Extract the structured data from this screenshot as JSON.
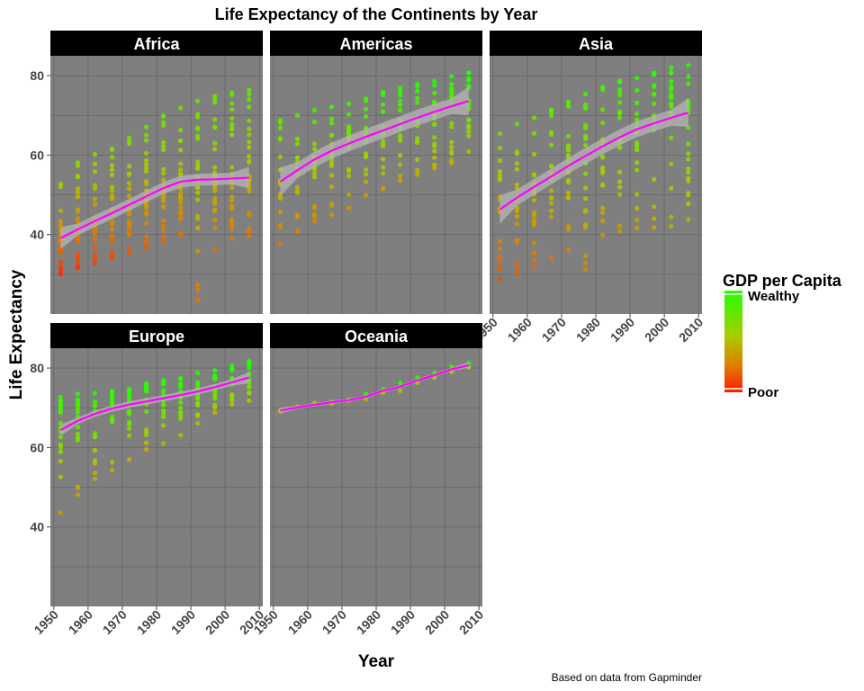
{
  "chart_data": {
    "type": "scatter",
    "title": "Life Expectancy of the Continents by Year",
    "xlabel": "Year",
    "ylabel": "Life Expectancy",
    "caption": "Based on data from Gapminder",
    "xlim": [
      1949,
      2011
    ],
    "ylim": [
      20,
      85
    ],
    "x_ticks": [
      1950,
      1960,
      1970,
      1980,
      1990,
      2000,
      2010
    ],
    "y_ticks": [
      40,
      60,
      80
    ],
    "grid": true,
    "years": [
      1952,
      1957,
      1962,
      1967,
      1972,
      1977,
      1982,
      1987,
      1992,
      1997,
      2002,
      2007
    ],
    "legend": {
      "title": "GDP per Capita",
      "position": "right",
      "high_label": "Wealthy",
      "low_label": "Poor",
      "high_color": "#22ff00",
      "low_color": "#ff1a00"
    },
    "colors": {
      "panel_background": "#7f7f7f",
      "strip_background": "#000000",
      "smooth_line": "#ff00ff",
      "confidence_band": "#b5b5b5"
    },
    "facets": [
      {
        "name": "Africa",
        "smooth": [
          39.1,
          41.3,
          43.4,
          45.4,
          47.5,
          49.6,
          51.7,
          53.3,
          53.8,
          53.9,
          54.1,
          54.3
        ],
        "range": [
          [
            30.0,
            52.7
          ],
          [
            31.6,
            58.1
          ],
          [
            32.8,
            60.2
          ],
          [
            34.1,
            61.6
          ],
          [
            35.4,
            64.3
          ],
          [
            36.8,
            67.1
          ],
          [
            38.4,
            69.9
          ],
          [
            39.9,
            71.9
          ],
          [
            23.6,
            73.6
          ],
          [
            36.1,
            74.8
          ],
          [
            39.2,
            75.7
          ],
          [
            39.6,
            76.4
          ]
        ],
        "smooth_band": 1.5
      },
      {
        "name": "Americas",
        "smooth": [
          53.3,
          56.2,
          58.9,
          61.1,
          62.9,
          64.6,
          66.2,
          67.8,
          69.4,
          70.9,
          72.3,
          73.6
        ],
        "range": [
          [
            37.6,
            68.8
          ],
          [
            40.7,
            70.0
          ],
          [
            43.4,
            71.3
          ],
          [
            45.0,
            72.1
          ],
          [
            46.7,
            72.9
          ],
          [
            49.9,
            74.2
          ],
          [
            51.5,
            75.8
          ],
          [
            53.6,
            76.9
          ],
          [
            55.1,
            77.9
          ],
          [
            56.7,
            78.6
          ],
          [
            58.1,
            79.8
          ],
          [
            60.9,
            80.7
          ]
        ],
        "smooth_band": 2.0
      },
      {
        "name": "Asia",
        "smooth": [
          46.3,
          49.3,
          52.0,
          54.6,
          57.3,
          59.8,
          62.2,
          64.5,
          66.5,
          68.0,
          69.4,
          70.7
        ],
        "range": [
          [
            28.8,
            65.4
          ],
          [
            30.3,
            67.8
          ],
          [
            32.0,
            69.4
          ],
          [
            34.0,
            71.4
          ],
          [
            36.1,
            73.4
          ],
          [
            31.2,
            75.4
          ],
          [
            39.9,
            77.1
          ],
          [
            40.8,
            78.7
          ],
          [
            41.7,
            79.4
          ],
          [
            41.8,
            80.7
          ],
          [
            42.1,
            82.0
          ],
          [
            43.8,
            82.6
          ]
        ],
        "smooth_band": 2.0
      },
      {
        "name": "Europe",
        "smooth": [
          64.4,
          66.7,
          68.5,
          69.8,
          70.8,
          71.6,
          72.4,
          73.2,
          74.1,
          75.2,
          76.4,
          77.6
        ],
        "range": [
          [
            43.6,
            72.7
          ],
          [
            48.1,
            73.5
          ],
          [
            52.1,
            73.7
          ],
          [
            54.3,
            74.2
          ],
          [
            57.0,
            74.7
          ],
          [
            59.5,
            76.1
          ],
          [
            61.0,
            76.9
          ],
          [
            63.1,
            77.4
          ],
          [
            66.1,
            78.8
          ],
          [
            68.8,
            79.4
          ],
          [
            70.8,
            80.6
          ],
          [
            71.8,
            81.8
          ]
        ],
        "smooth_band": 0.8
      },
      {
        "name": "Oceania",
        "smooth": [
          69.3,
          70.1,
          70.8,
          71.4,
          71.9,
          72.8,
          74.3,
          75.3,
          76.9,
          78.2,
          79.7,
          80.7
        ],
        "range": [
          [
            69.1,
            69.4
          ],
          [
            70.3,
            70.3
          ],
          [
            71.0,
            71.2
          ],
          [
            71.1,
            71.5
          ],
          [
            71.9,
            72.0
          ],
          [
            72.2,
            73.5
          ],
          [
            73.8,
            74.7
          ],
          [
            74.3,
            76.3
          ],
          [
            76.3,
            77.6
          ],
          [
            77.6,
            78.8
          ],
          [
            79.1,
            80.4
          ],
          [
            80.2,
            81.2
          ]
        ],
        "smooth_band": 0.4
      }
    ]
  }
}
